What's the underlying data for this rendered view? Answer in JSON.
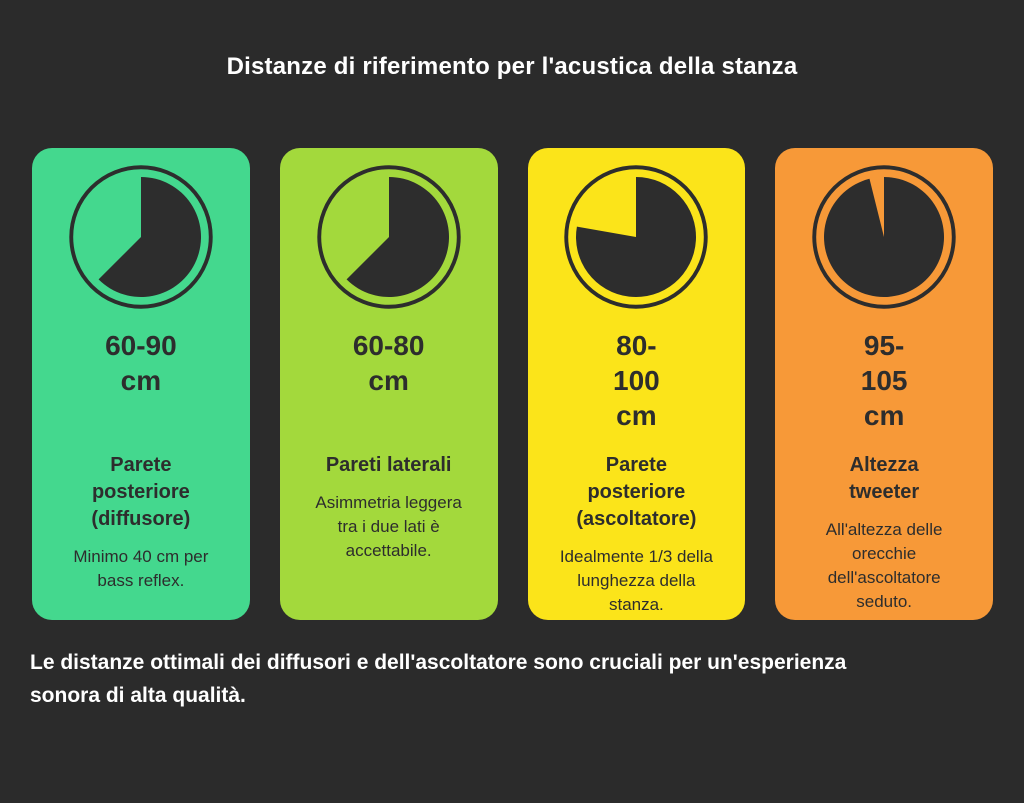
{
  "title": "Distanze di riferimento per l'acustica della stanza",
  "footer": "Le distanze ottimali dei diffusori e dell'ascoltatore sono cruciali per un'esperienza\nsonora di alta qualità.",
  "colors": {
    "background": "#2b2b2b",
    "text_on_cards": "#2d2d2d",
    "title_text": "#ffffff",
    "clock_ink": "#2d2d2d"
  },
  "cards": [
    {
      "range": "60-90\ncm",
      "title": "Parete\nposteriore\n(diffusore)",
      "description": "Minimo 40 cm per\nbass reflex.",
      "color": "#44d88e",
      "icon": "clock-icon",
      "clock_dark_sweep_deg": 225
    },
    {
      "range": "60-80\ncm",
      "title": "Pareti laterali",
      "description": "Asimmetria leggera\ntra i due lati è\naccettabile.",
      "color": "#a3d93c",
      "icon": "clock-icon",
      "clock_dark_sweep_deg": 225
    },
    {
      "range": "80-\n100\ncm",
      "title": "Parete\nposteriore\n(ascoltatore)",
      "description": "Idealmente 1/3 della\nlunghezza della\nstanza.",
      "color": "#fbe41a",
      "icon": "clock-icon",
      "clock_dark_sweep_deg": 280
    },
    {
      "range": "95-\n105\ncm",
      "title": "Altezza\ntweeter",
      "description": "All'altezza delle\norecchie\ndell'ascoltatore\nseduto.",
      "color": "#f79938",
      "icon": "clock-icon",
      "clock_dark_sweep_deg": 346
    }
  ]
}
